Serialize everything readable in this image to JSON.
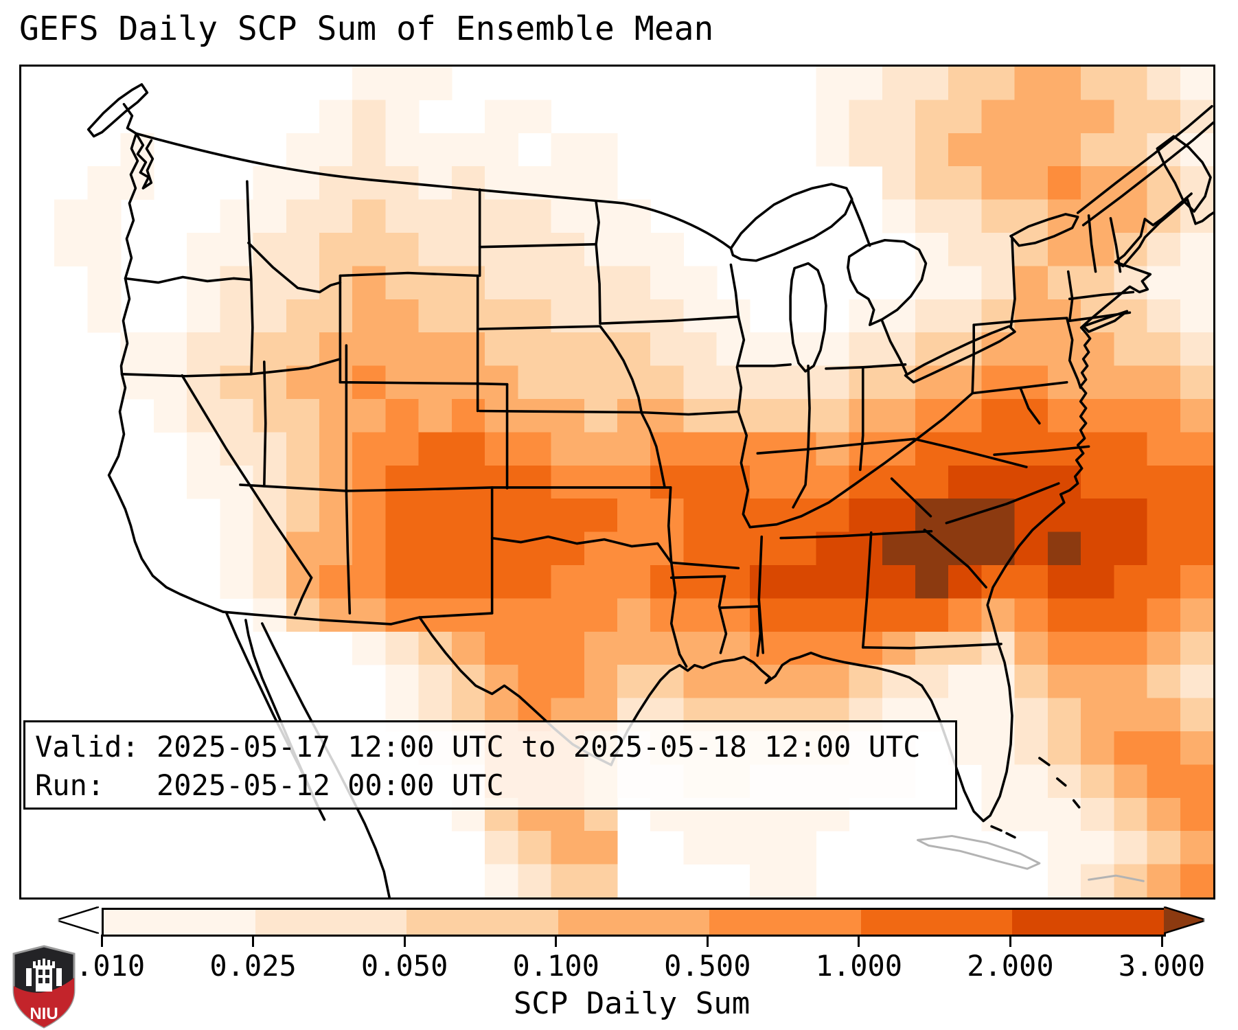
{
  "figure": {
    "title": "GEFS Daily SCP Sum of Ensemble Mean",
    "info_box": {
      "valid_line": "Valid: 2025-05-17 12:00 UTC to 2025-05-18 12:00 UTC",
      "run_line": "Run:   2025-05-12 00:00 UTC"
    },
    "logo": {
      "text": "NIU",
      "shield_dark": "#232326",
      "shield_red": "#c3242b"
    }
  },
  "chart_data": {
    "type": "heatmap",
    "title": "GEFS Daily SCP Sum of Ensemble Mean",
    "valid": "2025-05-17 12:00 UTC to 2025-05-18 12:00 UTC",
    "run": "2025-05-12 00:00 UTC",
    "colorbar": {
      "label": "SCP Daily Sum",
      "orientation": "horizontal",
      "extend": "both",
      "levels": [
        0.01,
        0.025,
        0.05,
        0.1,
        0.5,
        1.0,
        2.0,
        3.0
      ],
      "tick_labels": [
        "0.010",
        "0.025",
        "0.050",
        "0.100",
        "0.500",
        "1.000",
        "2.000",
        "3.000"
      ],
      "segment_colors": [
        "#fff5eb",
        "#fee6ce",
        "#fdd0a2",
        "#fdae6b",
        "#fd8d3c",
        "#f16913",
        "#d94801"
      ],
      "under_color": "#ffffff",
      "over_color": "#8c3a10"
    },
    "grid": {
      "comment": "SCP daily-sum ensemble-mean field over CONUS; each digit = color class index: 0 under(<0.010), 1:0.010-0.025, 2:0.025-0.050, 3:0.050-0.100, 4:0.100-0.500, 5:0.500-1.000, 6:1.000-2.000, 7:2.000-3.000, 8 over(>3.000)",
      "cols": 36,
      "rows": 25,
      "rows_data": [
        "000000000011100000000000112233443321",
        "000000000121001100000000122334444332",
        "000100001121111011000000122344443321",
        "001100011222121111000000002334454432",
        "011000112232222211100000001223344432",
        "011001122333222221110000000122344321",
        "001001222343332222211000000112433211",
        "001001223344333322221100011223443321",
        "000112233444443333322111122334444332",
        "000112334454444333332222233445544443",
        "000012233445454443443333344556655554",
        "000001223455665544455555455666666655",
        "000001123456666655566655566677776666",
        "000000123456666666556666677888777766",
        "000000124456666665556666778888787766",
        "000000124556666655566677777876677665",
        "000000013445555555455566666654566654",
        "000000000012345554444455554332455543",
        "000000000001234554334444432211344432",
        "000000000001234544223333321111234443",
        "000000000000124443122222211011234554",
        "000000000000014443112211111001123455",
        "000000000000013443011111100001112345",
        "000000000000002344001111000000011234",
        "000000000000001233000011000000012345"
      ]
    }
  }
}
